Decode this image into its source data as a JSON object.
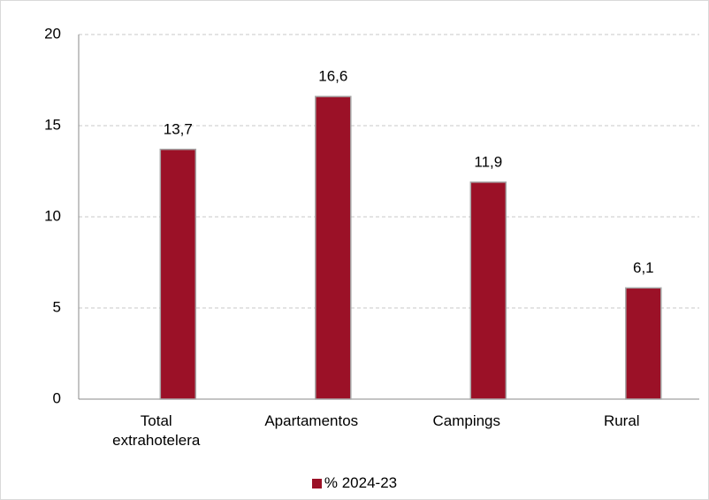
{
  "chart_data": {
    "type": "bar",
    "categories": [
      "Total extrahotelera",
      "Apartamentos",
      "Campings",
      "Rural"
    ],
    "series": [
      {
        "name": "% 2024-23",
        "color": "#9b1127",
        "values": [
          13.7,
          16.6,
          11.9,
          6.1
        ],
        "value_labels": [
          "13,7",
          "16,6",
          "11,9",
          "6,1"
        ]
      }
    ],
    "ylim": [
      0,
      20
    ],
    "yticks": [
      0,
      5,
      10,
      15,
      20
    ],
    "grid": true,
    "legend": "bottom"
  }
}
